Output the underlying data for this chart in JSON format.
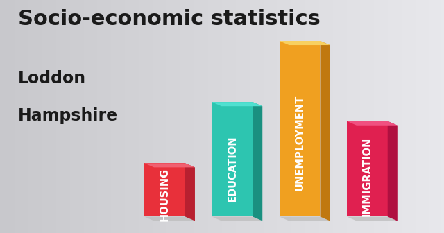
{
  "title": "Socio-economic statistics",
  "subtitle1": "Loddon",
  "subtitle2": "Hampshire",
  "categories": [
    "HOUSING",
    "EDUCATION",
    "UNEMPLOYMENT",
    "IMMIGRATION"
  ],
  "values": [
    0.28,
    0.6,
    0.92,
    0.5
  ],
  "bar_colors_front": [
    "#e8303a",
    "#2dc5b0",
    "#f0a020",
    "#e02050"
  ],
  "bar_colors_side": [
    "#b82030",
    "#1a9080",
    "#c07810",
    "#b01040"
  ],
  "bar_colors_top": [
    "#f06070",
    "#50e0d0",
    "#f8d060",
    "#f05080"
  ],
  "shadow_color": "#bbbbbb",
  "bg_color_left": "#d0d0d0",
  "bg_color_right": "#e8e8e8",
  "title_fontsize": 22,
  "subtitle_fontsize": 17,
  "label_fontsize": 10.5,
  "title_color": "#1a1a1a",
  "subtitle_color": "#1a1a1a",
  "label_color": "#ffffff"
}
